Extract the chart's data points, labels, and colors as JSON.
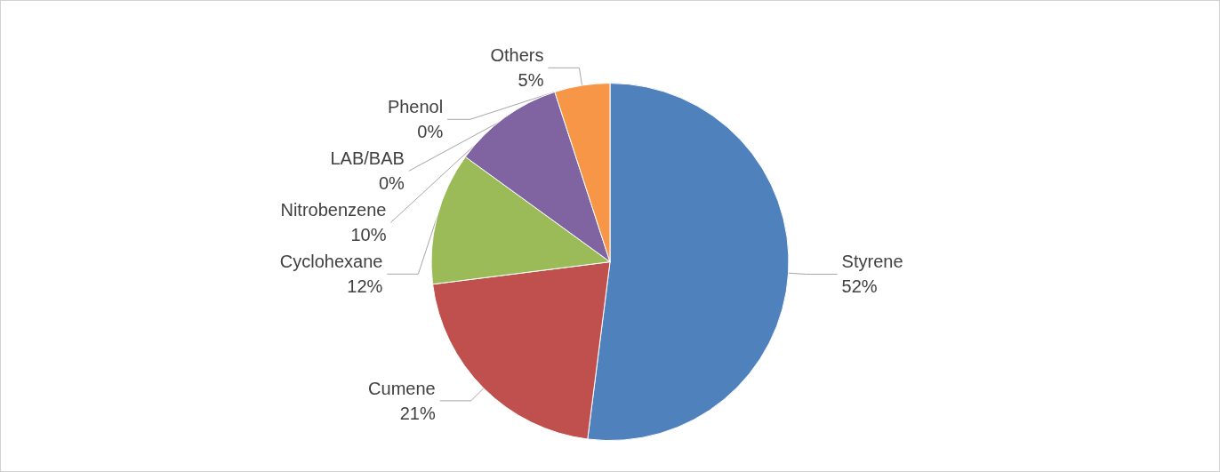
{
  "chart_data": {
    "type": "pie",
    "categories": [
      "Styrene",
      "Cumene",
      "Cyclohexane",
      "Nitrobenzene",
      "Phenol",
      "LAB/BAB",
      "Others"
    ],
    "values": [
      52,
      21,
      12,
      10,
      0,
      0,
      5
    ],
    "value_labels": [
      "52%",
      "21%",
      "12%",
      "10%",
      "0%",
      "0%",
      "5%"
    ],
    "colors": [
      "#4f81bd",
      "#c0504d",
      "#9bbb59",
      "#8064a2",
      "#4bacc6",
      "#2c4d75",
      "#f79646"
    ],
    "legend": false
  }
}
